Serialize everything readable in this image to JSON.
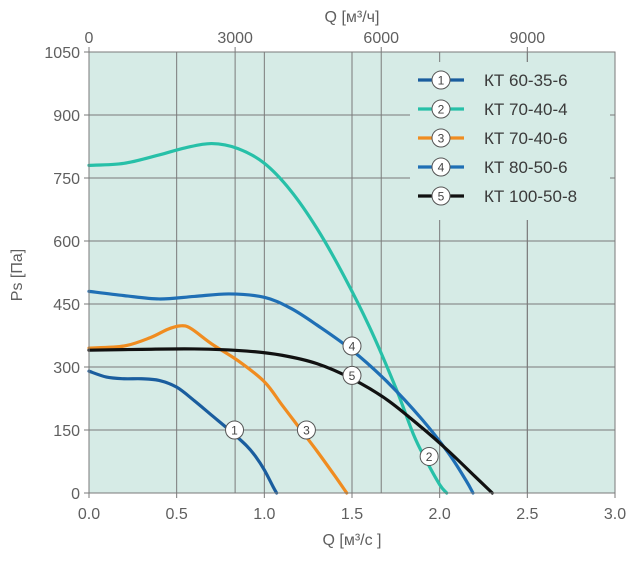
{
  "chart_data": {
    "type": "line",
    "title": "",
    "xlabel": "Q [м³/с ]",
    "ylabel": "Ps [Па]",
    "top_xlabel": "Q [м³/ч]",
    "xlim": [
      0,
      3.0
    ],
    "ylim": [
      0,
      1050
    ],
    "top_xlim": [
      0,
      10800
    ],
    "x_ticks": [
      "0.0",
      "0.5",
      "1.0",
      "1.5",
      "2.0",
      "2.5",
      "3.0"
    ],
    "y_ticks": [
      "0",
      "150",
      "300",
      "450",
      "600",
      "750",
      "900",
      "1050"
    ],
    "top_x_ticks": [
      "0",
      "3000",
      "6000",
      "9000"
    ],
    "grid": true,
    "background_color": "#d6ebe6",
    "legend_position": "top-right",
    "series": [
      {
        "name": "КТ 60-35-6",
        "marker": "1",
        "color": "#1a5d9e",
        "x": [
          0.0,
          0.1,
          0.2,
          0.3,
          0.4,
          0.5,
          0.6,
          0.7,
          0.8,
          0.9,
          0.95,
          1.0,
          1.05,
          1.07
        ],
        "y": [
          290,
          276,
          272,
          272,
          268,
          252,
          220,
          185,
          150,
          112,
          87,
          55,
          15,
          0
        ]
      },
      {
        "name": "КТ 70-40-4",
        "marker": "2",
        "color": "#27c0a8",
        "x": [
          0.0,
          0.2,
          0.4,
          0.55,
          0.7,
          0.85,
          1.0,
          1.15,
          1.3,
          1.45,
          1.6,
          1.75,
          1.85,
          1.92,
          2.0,
          2.04
        ],
        "y": [
          780,
          785,
          805,
          822,
          832,
          820,
          785,
          720,
          630,
          520,
          395,
          250,
          140,
          80,
          20,
          0
        ]
      },
      {
        "name": "КТ 70-40-6",
        "marker": "3",
        "color": "#f08c20",
        "x": [
          0.0,
          0.2,
          0.35,
          0.45,
          0.52,
          0.58,
          0.7,
          0.85,
          1.0,
          1.1,
          1.2,
          1.3,
          1.4,
          1.47
        ],
        "y": [
          345,
          350,
          370,
          390,
          398,
          392,
          355,
          315,
          265,
          210,
          155,
          100,
          42,
          0
        ]
      },
      {
        "name": "КТ 80-50-6",
        "marker": "4",
        "color": "#1f6fb5",
        "x": [
          0.0,
          0.2,
          0.4,
          0.6,
          0.8,
          1.0,
          1.15,
          1.3,
          1.5,
          1.7,
          1.9,
          2.05,
          2.15,
          2.19
        ],
        "y": [
          480,
          470,
          462,
          468,
          474,
          466,
          440,
          400,
          340,
          265,
          175,
          95,
          30,
          0
        ]
      },
      {
        "name": "КТ 100-50-8",
        "marker": "5",
        "color": "#111111",
        "x": [
          0.0,
          0.3,
          0.6,
          0.9,
          1.1,
          1.3,
          1.5,
          1.7,
          1.9,
          2.05,
          2.2,
          2.3
        ],
        "y": [
          340,
          342,
          343,
          338,
          328,
          308,
          272,
          222,
          155,
          100,
          40,
          0
        ]
      }
    ],
    "marker_labels": [
      {
        "label": "1",
        "series": 0,
        "x": 0.83,
        "y": 150
      },
      {
        "label": "3",
        "series": 2,
        "x": 1.24,
        "y": 150
      },
      {
        "label": "4",
        "series": 3,
        "x": 1.5,
        "y": 350
      },
      {
        "label": "5",
        "series": 4,
        "x": 1.5,
        "y": 280
      },
      {
        "label": "2",
        "series": 1,
        "x": 1.94,
        "y": 87
      }
    ]
  }
}
